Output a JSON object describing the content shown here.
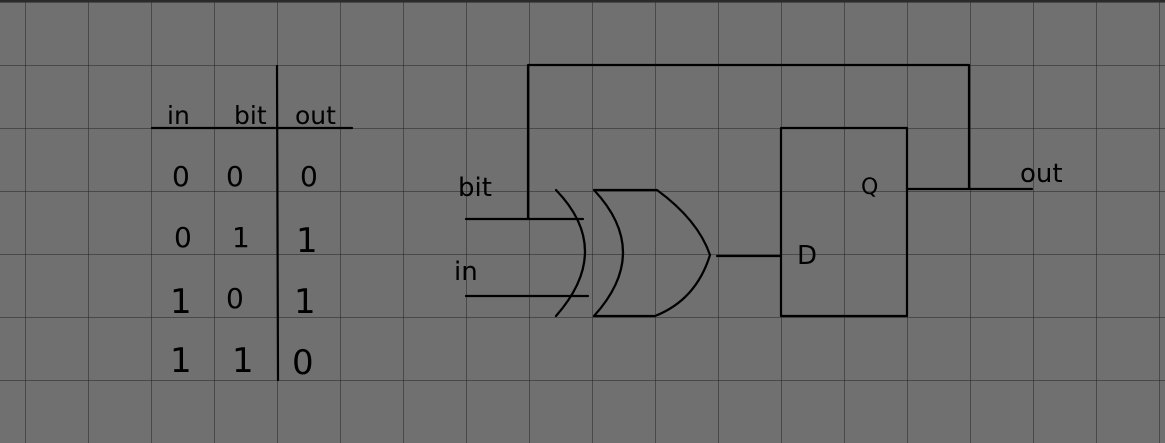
{
  "truth_table": {
    "headers": [
      "in",
      "bit",
      "out"
    ],
    "rows": [
      [
        "0",
        "0",
        "0"
      ],
      [
        "0",
        "1",
        "1"
      ],
      [
        "1",
        "0",
        "1"
      ],
      [
        "1",
        "1",
        "0"
      ]
    ]
  },
  "circuit": {
    "label_bit": "bit",
    "label_in": "in",
    "label_d": "D",
    "label_q": "Q",
    "label_out": "out"
  },
  "colors": {
    "paper": "#707070",
    "grid": "#3a3a3a",
    "ink": "#000000"
  }
}
